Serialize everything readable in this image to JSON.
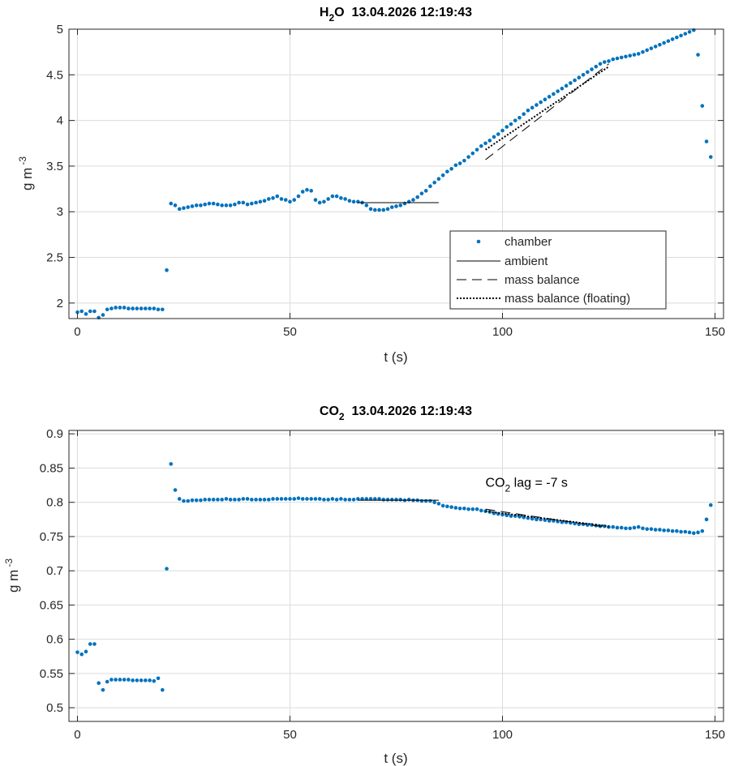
{
  "colors": {
    "chamber": "#0072bd",
    "lines": "#000000",
    "grid": "#dcdcdc"
  },
  "chart_data": [
    {
      "type": "scatter",
      "title_main": "H",
      "title_sub": "2",
      "title_rest": "O  13.04.2026 12:19:43",
      "xlabel": "t (s)",
      "ylabel_main": "g m",
      "ylabel_sup": "-3",
      "xlim": [
        -2,
        152
      ],
      "ylim": [
        1.83,
        5
      ],
      "xticks": [
        0,
        50,
        100,
        150
      ],
      "yticks": [
        2,
        2.5,
        3,
        3.5,
        4,
        4.5,
        5
      ],
      "legend": {
        "position": "lower-right",
        "entries": [
          "chamber",
          "ambient",
          "mass balance",
          "mass balance (floating)"
        ]
      },
      "series": [
        {
          "name": "chamber",
          "style": "dots",
          "x": [
            0,
            1,
            2,
            3,
            4,
            5,
            6,
            7,
            8,
            9,
            10,
            11,
            12,
            13,
            14,
            15,
            16,
            17,
            18,
            19,
            20,
            21,
            22,
            23,
            24,
            25,
            26,
            27,
            28,
            29,
            30,
            31,
            32,
            33,
            34,
            35,
            36,
            37,
            38,
            39,
            40,
            41,
            42,
            43,
            44,
            45,
            46,
            47,
            48,
            49,
            50,
            51,
            52,
            53,
            54,
            55,
            56,
            57,
            58,
            59,
            60,
            61,
            62,
            63,
            64,
            65,
            66,
            67,
            68,
            69,
            70,
            71,
            72,
            73,
            74,
            75,
            76,
            77,
            78,
            79,
            80,
            81,
            82,
            83,
            84,
            85,
            86,
            87,
            88,
            89,
            90,
            91,
            92,
            93,
            94,
            95,
            96,
            97,
            98,
            99,
            100,
            101,
            102,
            103,
            104,
            105,
            106,
            107,
            108,
            109,
            110,
            111,
            112,
            113,
            114,
            115,
            116,
            117,
            118,
            119,
            120,
            121,
            122,
            123,
            124,
            125,
            126,
            127,
            128,
            129,
            130,
            131,
            132,
            133,
            134,
            135,
            136,
            137,
            138,
            139,
            140,
            141,
            142,
            143,
            144,
            145,
            146,
            147,
            148,
            149
          ],
          "y": [
            1.9,
            1.91,
            1.88,
            1.91,
            1.91,
            1.84,
            1.87,
            1.93,
            1.94,
            1.95,
            1.95,
            1.95,
            1.94,
            1.94,
            1.94,
            1.94,
            1.94,
            1.94,
            1.94,
            1.93,
            1.93,
            2.36,
            3.09,
            3.07,
            3.03,
            3.04,
            3.05,
            3.06,
            3.07,
            3.07,
            3.08,
            3.09,
            3.09,
            3.08,
            3.07,
            3.07,
            3.07,
            3.08,
            3.1,
            3.1,
            3.08,
            3.09,
            3.1,
            3.11,
            3.12,
            3.14,
            3.15,
            3.17,
            3.14,
            3.13,
            3.11,
            3.13,
            3.17,
            3.22,
            3.24,
            3.23,
            3.13,
            3.1,
            3.11,
            3.14,
            3.17,
            3.17,
            3.15,
            3.14,
            3.12,
            3.11,
            3.11,
            3.1,
            3.07,
            3.03,
            3.02,
            3.02,
            3.02,
            3.03,
            3.05,
            3.06,
            3.07,
            3.09,
            3.11,
            3.13,
            3.16,
            3.2,
            3.23,
            3.28,
            3.32,
            3.36,
            3.4,
            3.44,
            3.47,
            3.51,
            3.53,
            3.56,
            3.6,
            3.64,
            3.68,
            3.72,
            3.75,
            3.78,
            3.82,
            3.85,
            3.89,
            3.93,
            3.96,
            4.0,
            4.03,
            4.07,
            4.11,
            4.14,
            4.17,
            4.2,
            4.23,
            4.26,
            4.29,
            4.32,
            4.35,
            4.38,
            4.41,
            4.44,
            4.47,
            4.5,
            4.53,
            4.56,
            4.59,
            4.62,
            4.64,
            4.65,
            4.67,
            4.68,
            4.69,
            4.7,
            4.71,
            4.72,
            4.73,
            4.75,
            4.77,
            4.79,
            4.81,
            4.83,
            4.85,
            4.87,
            4.89,
            4.91,
            4.93,
            4.95,
            4.97,
            4.99,
            4.72,
            4.16,
            3.77,
            3.6
          ]
        },
        {
          "name": "ambient",
          "style": "solid",
          "x": [
            66,
            85
          ],
          "y": [
            3.1,
            3.1
          ]
        },
        {
          "name": "mass balance",
          "style": "dashed",
          "x": [
            96,
            125
          ],
          "y": [
            3.57,
            4.62
          ]
        },
        {
          "name": "mass balance (floating)",
          "style": "dotted",
          "x": [
            96,
            125
          ],
          "y": [
            3.68,
            4.59
          ]
        }
      ]
    },
    {
      "type": "scatter",
      "title_main": "CO",
      "title_sub": "2",
      "title_rest": "  13.04.2026 12:19:43",
      "xlabel": "t (s)",
      "ylabel_main": "g m",
      "ylabel_sup": "-3",
      "xlim": [
        -2,
        152
      ],
      "ylim": [
        0.48,
        0.905
      ],
      "xticks": [
        0,
        50,
        100,
        150
      ],
      "yticks": [
        0.5,
        0.55,
        0.6,
        0.65,
        0.7,
        0.75,
        0.8,
        0.85,
        0.9
      ],
      "annotation": {
        "main": "CO",
        "sub": "2",
        "rest": " lag = -7 s",
        "x": 96,
        "y": 0.823
      },
      "series": [
        {
          "name": "chamber",
          "style": "dots",
          "x": [
            0,
            1,
            2,
            3,
            4,
            5,
            6,
            7,
            8,
            9,
            10,
            11,
            12,
            13,
            14,
            15,
            16,
            17,
            18,
            19,
            20,
            21,
            22,
            23,
            24,
            25,
            26,
            27,
            28,
            29,
            30,
            31,
            32,
            33,
            34,
            35,
            36,
            37,
            38,
            39,
            40,
            41,
            42,
            43,
            44,
            45,
            46,
            47,
            48,
            49,
            50,
            51,
            52,
            53,
            54,
            55,
            56,
            57,
            58,
            59,
            60,
            61,
            62,
            63,
            64,
            65,
            66,
            67,
            68,
            69,
            70,
            71,
            72,
            73,
            74,
            75,
            76,
            77,
            78,
            79,
            80,
            81,
            82,
            83,
            84,
            85,
            86,
            87,
            88,
            89,
            90,
            91,
            92,
            93,
            94,
            95,
            96,
            97,
            98,
            99,
            100,
            101,
            102,
            103,
            104,
            105,
            106,
            107,
            108,
            109,
            110,
            111,
            112,
            113,
            114,
            115,
            116,
            117,
            118,
            119,
            120,
            121,
            122,
            123,
            124,
            125,
            126,
            127,
            128,
            129,
            130,
            131,
            132,
            133,
            134,
            135,
            136,
            137,
            138,
            139,
            140,
            141,
            142,
            143,
            144,
            145,
            146,
            147,
            148,
            149
          ],
          "y": [
            0.581,
            0.578,
            0.582,
            0.593,
            0.593,
            0.536,
            0.526,
            0.538,
            0.541,
            0.541,
            0.541,
            0.541,
            0.541,
            0.54,
            0.54,
            0.54,
            0.54,
            0.54,
            0.539,
            0.543,
            0.526,
            0.703,
            0.856,
            0.818,
            0.805,
            0.802,
            0.802,
            0.803,
            0.803,
            0.803,
            0.804,
            0.804,
            0.804,
            0.804,
            0.804,
            0.805,
            0.804,
            0.804,
            0.804,
            0.805,
            0.805,
            0.804,
            0.804,
            0.804,
            0.804,
            0.804,
            0.805,
            0.805,
            0.805,
            0.805,
            0.805,
            0.805,
            0.806,
            0.805,
            0.805,
            0.805,
            0.805,
            0.805,
            0.804,
            0.804,
            0.805,
            0.804,
            0.805,
            0.804,
            0.804,
            0.804,
            0.805,
            0.805,
            0.805,
            0.805,
            0.805,
            0.805,
            0.804,
            0.804,
            0.804,
            0.804,
            0.804,
            0.803,
            0.804,
            0.803,
            0.803,
            0.802,
            0.802,
            0.802,
            0.8,
            0.798,
            0.795,
            0.794,
            0.793,
            0.792,
            0.791,
            0.791,
            0.79,
            0.79,
            0.79,
            0.788,
            0.787,
            0.786,
            0.784,
            0.783,
            0.782,
            0.781,
            0.78,
            0.78,
            0.779,
            0.778,
            0.777,
            0.776,
            0.775,
            0.775,
            0.774,
            0.773,
            0.773,
            0.772,
            0.771,
            0.771,
            0.77,
            0.769,
            0.768,
            0.768,
            0.767,
            0.767,
            0.766,
            0.765,
            0.765,
            0.764,
            0.764,
            0.763,
            0.763,
            0.762,
            0.762,
            0.763,
            0.764,
            0.762,
            0.761,
            0.761,
            0.76,
            0.76,
            0.759,
            0.759,
            0.758,
            0.758,
            0.757,
            0.757,
            0.756,
            0.755,
            0.756,
            0.758,
            0.775,
            0.796
          ]
        },
        {
          "name": "ambient",
          "style": "solid",
          "x": [
            66,
            85
          ],
          "y": [
            0.803,
            0.803
          ]
        },
        {
          "name": "mass balance",
          "style": "dashed",
          "x": [
            96,
            125
          ],
          "y": [
            0.79,
            0.763
          ]
        },
        {
          "name": "mass balance (floating)",
          "style": "dotted",
          "x": [
            96,
            125
          ],
          "y": [
            0.787,
            0.765
          ]
        }
      ]
    }
  ]
}
